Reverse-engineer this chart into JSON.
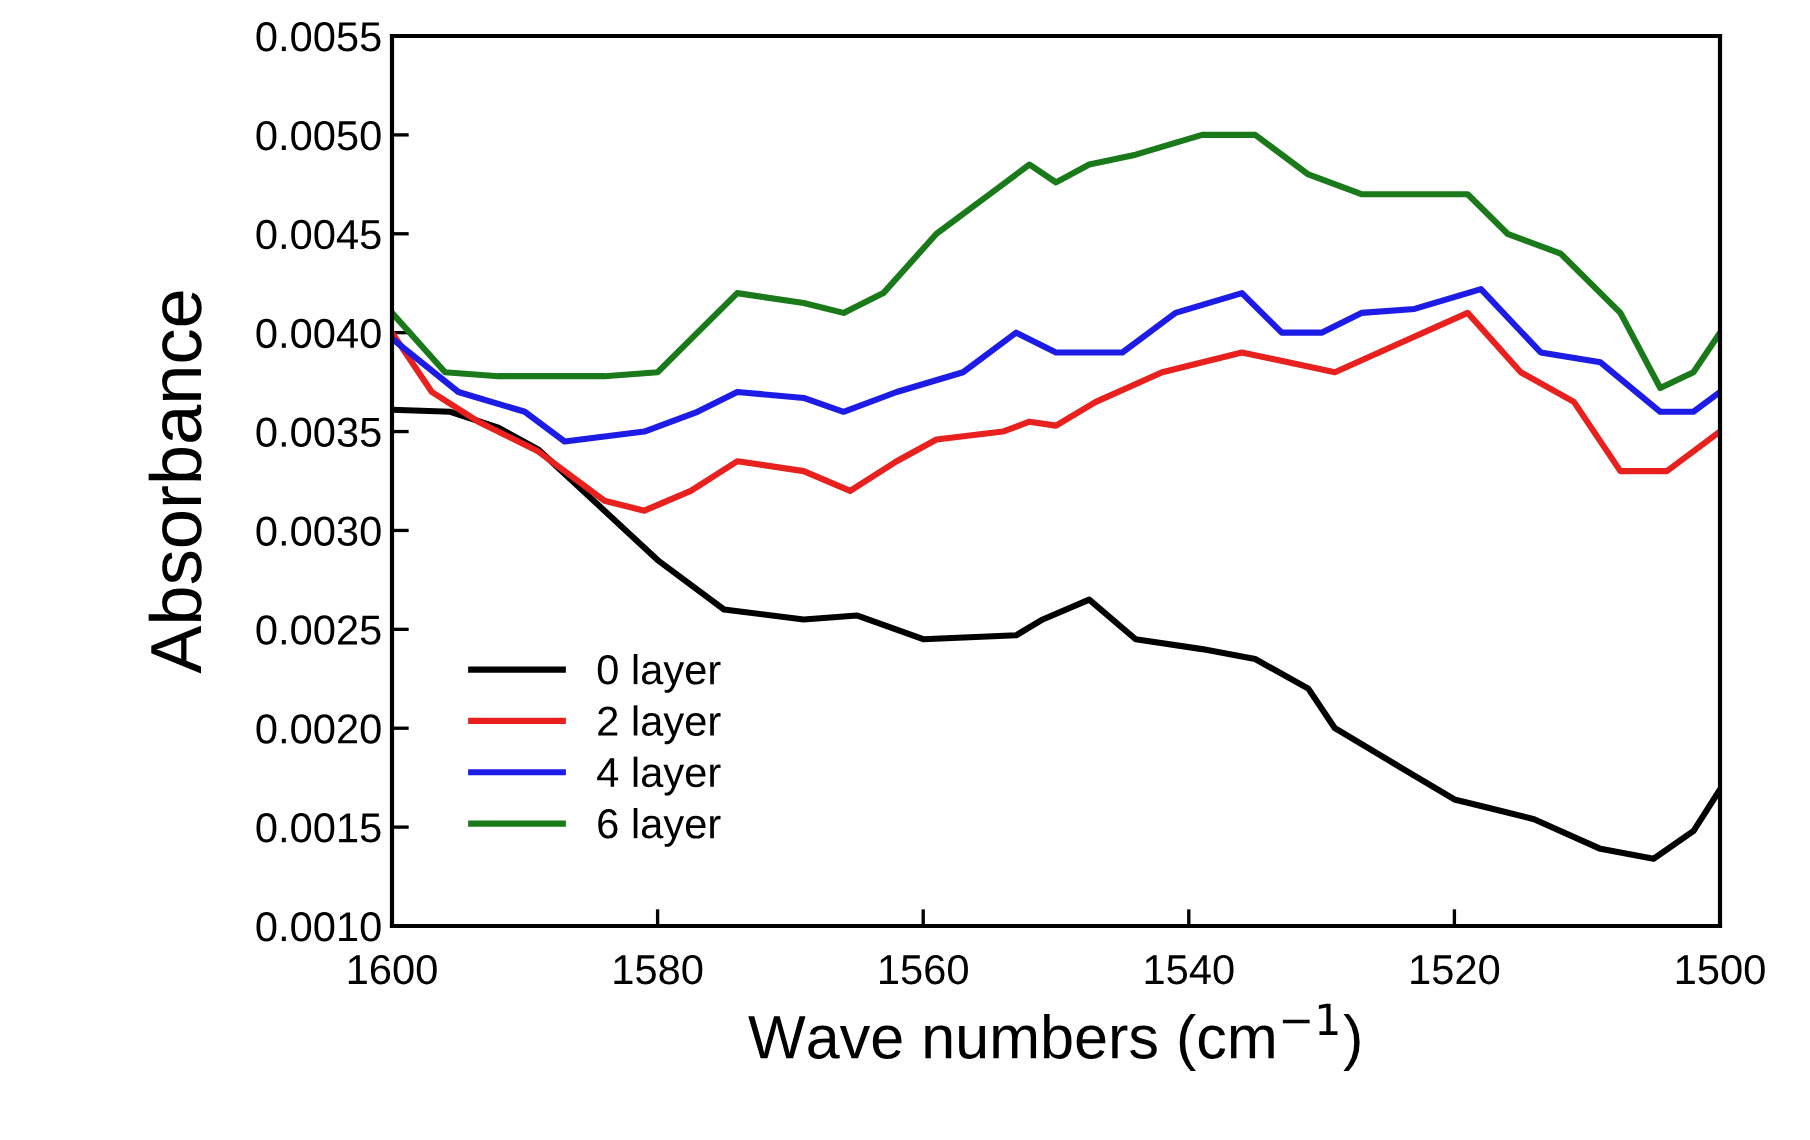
{
  "chart_data": {
    "type": "line",
    "xlabel": "Wave numbers (cm$^{−1}$)",
    "ylabel": "Absorbance",
    "xlim": [
      1600,
      1500
    ],
    "xticks": [
      1600,
      1580,
      1560,
      1540,
      1520,
      1500
    ],
    "ylim": [
      0.001,
      0.0055
    ],
    "yticks": [
      {
        "value": 0.001,
        "label": "0.0010"
      },
      {
        "value": 0.0015,
        "label": "0.0015"
      },
      {
        "value": 0.002,
        "label": "0.0020"
      },
      {
        "value": 0.0025,
        "label": "0.0025"
      },
      {
        "value": 0.003,
        "label": "0.0030"
      },
      {
        "value": 0.0035,
        "label": "0.0035"
      },
      {
        "value": 0.004,
        "label": "0.0040"
      },
      {
        "value": 0.0045,
        "label": "0.0045"
      },
      {
        "value": 0.005,
        "label": "0.0050"
      },
      {
        "value": 0.0055,
        "label": "0.0055"
      }
    ],
    "legend": "bottom left",
    "grid": false,
    "marker": "none",
    "line_style": "solid",
    "series": [
      {
        "name": "0 layer",
        "color": "#000000",
        "x": [
          1600,
          1595.6,
          1592,
          1589,
          1584,
          1580,
          1575,
          1569,
          1565,
          1560,
          1553,
          1551,
          1547.5,
          1544,
          1539,
          1535,
          1531,
          1529,
          1524,
          1520,
          1517,
          1514,
          1509,
          1505,
          1502,
          1500
        ],
        "values": [
          0.00361,
          0.0036,
          0.00352,
          0.00341,
          0.0031,
          0.00285,
          0.0026,
          0.00255,
          0.00257,
          0.00245,
          0.00247,
          0.00255,
          0.00265,
          0.00245,
          0.0024,
          0.00235,
          0.0022,
          0.002,
          0.0018,
          0.00164,
          0.00159,
          0.00154,
          0.00139,
          0.00134,
          0.00148,
          0.00169
        ]
      },
      {
        "name": "2 layer",
        "color": "#e8201e",
        "x": [
          1600,
          1597,
          1593.5,
          1589,
          1584,
          1581,
          1577.5,
          1574,
          1569,
          1565.5,
          1562,
          1559,
          1554,
          1552,
          1550,
          1547,
          1542,
          1536,
          1529,
          1524,
          1519,
          1515,
          1511,
          1507.5,
          1504,
          1500
        ],
        "values": [
          0.004,
          0.0037,
          0.00355,
          0.0034,
          0.00315,
          0.0031,
          0.0032,
          0.00335,
          0.0033,
          0.0032,
          0.00335,
          0.00346,
          0.0035,
          0.00355,
          0.00353,
          0.00365,
          0.0038,
          0.0039,
          0.0038,
          0.00395,
          0.0041,
          0.0038,
          0.00365,
          0.0033,
          0.0033,
          0.0035
        ]
      },
      {
        "name": "4 layer",
        "color": "#1c1ce6",
        "x": [
          1600,
          1595,
          1590,
          1587,
          1581,
          1577,
          1574,
          1569,
          1566,
          1562,
          1557,
          1553,
          1550,
          1545,
          1541,
          1536,
          1533,
          1530,
          1527,
          1523,
          1518,
          1513.5,
          1509,
          1504.5,
          1502,
          1500
        ],
        "values": [
          0.00397,
          0.0037,
          0.0036,
          0.00345,
          0.0035,
          0.0036,
          0.0037,
          0.00367,
          0.0036,
          0.0037,
          0.0038,
          0.004,
          0.0039,
          0.0039,
          0.0041,
          0.0042,
          0.004,
          0.004,
          0.0041,
          0.00412,
          0.00422,
          0.0039,
          0.00385,
          0.0036,
          0.0036,
          0.0037
        ]
      },
      {
        "name": "6 layer",
        "color": "#1a7a1a",
        "x": [
          1600,
          1596,
          1592,
          1584,
          1580,
          1577,
          1574,
          1569,
          1566,
          1563,
          1559,
          1554,
          1552,
          1550,
          1547.5,
          1544,
          1539,
          1535,
          1531,
          1527,
          1523,
          1519,
          1516,
          1512,
          1507.5,
          1504.5,
          1502,
          1500
        ],
        "values": [
          0.0041,
          0.0038,
          0.00378,
          0.00378,
          0.0038,
          0.004,
          0.0042,
          0.00415,
          0.0041,
          0.0042,
          0.0045,
          0.00475,
          0.00485,
          0.00476,
          0.00485,
          0.0049,
          0.005,
          0.005,
          0.0048,
          0.0047,
          0.0047,
          0.0047,
          0.0045,
          0.0044,
          0.0041,
          0.00372,
          0.0038,
          0.004
        ]
      }
    ]
  }
}
